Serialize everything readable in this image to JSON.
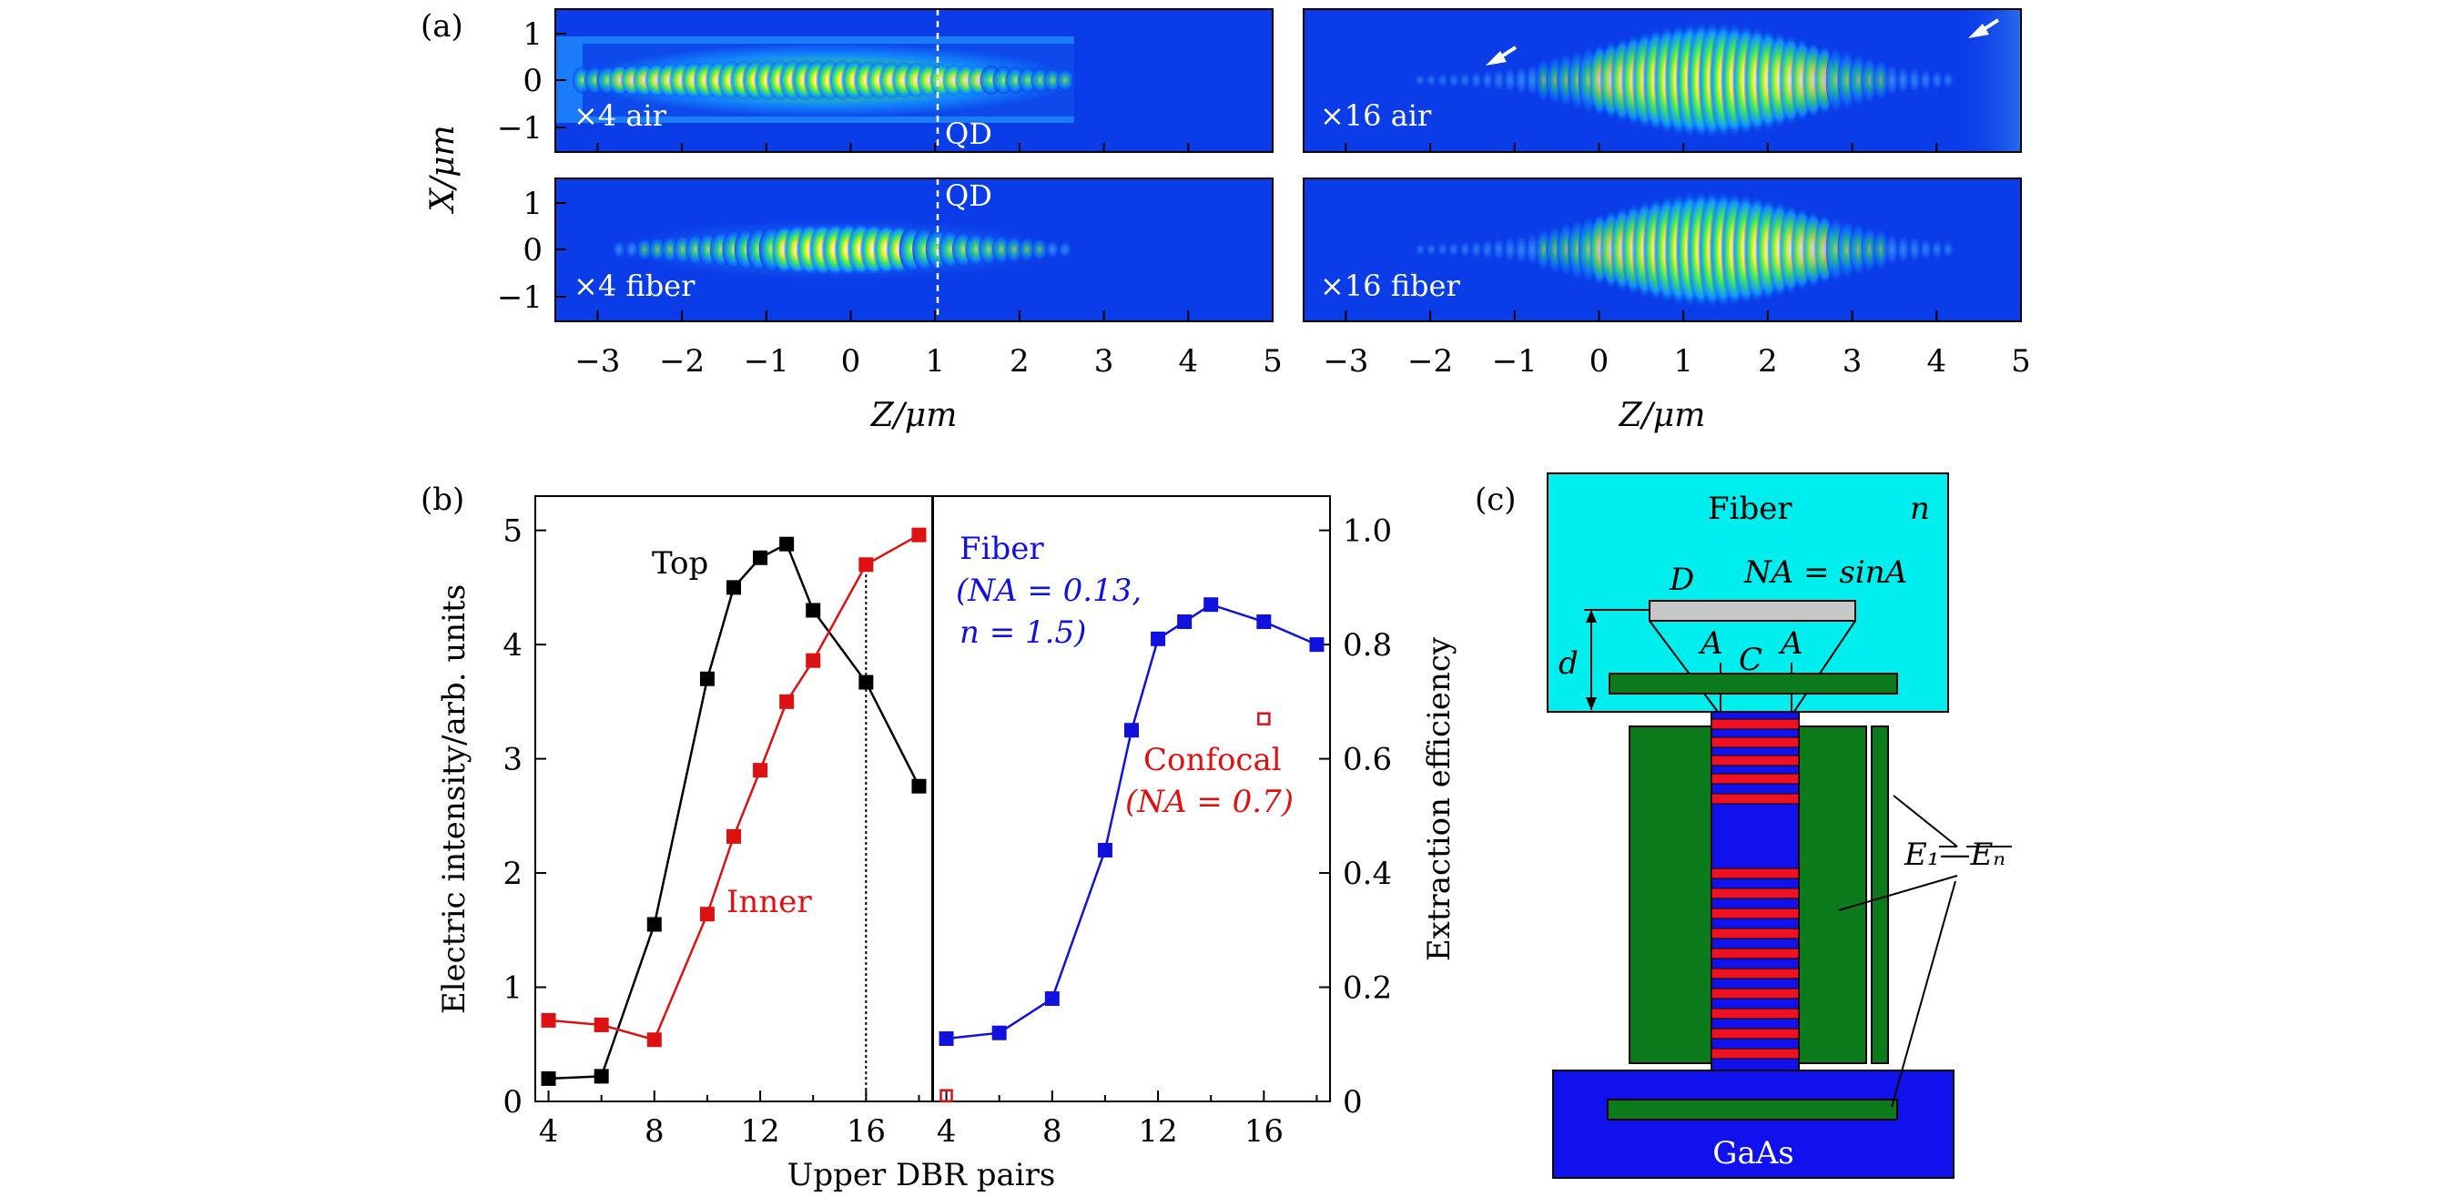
{
  "panel_a": {
    "label": "(a)",
    "ylabel": "X/μm",
    "xlabel": "Z/μm",
    "x_ticks": [
      "−3",
      "−2",
      "−1",
      "0",
      "1",
      "2",
      "3",
      "4",
      "5"
    ],
    "y_ticks": [
      "1",
      "0",
      "−1"
    ],
    "maps": [
      {
        "label": "×4 air"
      },
      {
        "label": "×16 air"
      },
      {
        "label": "×4 fiber"
      },
      {
        "label": "×16 fiber"
      }
    ],
    "qd_label": "QD"
  },
  "panel_b": {
    "label": "(b)",
    "left": {
      "ylabel": "Electric intensity/arb. units",
      "y_ticks": [
        "0",
        "1",
        "2",
        "3",
        "4",
        "5"
      ]
    },
    "right": {
      "ylabel": "Extraction efficiency",
      "y_ticks": [
        "0",
        "0.2",
        "0.4",
        "0.6",
        "0.8",
        "1.0"
      ]
    },
    "xlabel": "Upper DBR pairs",
    "x_ticks": [
      "4",
      "8",
      "12",
      "16"
    ],
    "annotations": {
      "top": "Top",
      "inner": "Inner",
      "fiber_1": "Fiber",
      "fiber_2": "(NA = 0.13,",
      "fiber_3": "n = 1.5)",
      "confocal_1": "Confocal",
      "confocal_2": "(NA = 0.7)"
    }
  },
  "panel_c": {
    "label": "(c)",
    "fiber": "Fiber",
    "n": "n",
    "D": "D",
    "na": "NA = sinA",
    "d": "d",
    "A1": "A",
    "C": "C",
    "A2": "A",
    "E": "E₁—Eₙ",
    "gaas": "GaAs"
  },
  "chart_data": [
    {
      "type": "line",
      "ylabel": "Electric intensity/arb. units",
      "xlabel": "Upper DBR pairs",
      "xlim": [
        3.5,
        18.5
      ],
      "ylim": [
        0,
        5.3
      ],
      "series": [
        {
          "name": "Top",
          "color": "#000000",
          "x": [
            4,
            6,
            8,
            10,
            11,
            12,
            13,
            14,
            16,
            18
          ],
          "y": [
            0.2,
            0.22,
            1.55,
            3.7,
            4.5,
            4.76,
            4.88,
            4.3,
            3.67,
            2.76
          ]
        },
        {
          "name": "Inner",
          "color": "#dd1111",
          "x": [
            4,
            6,
            8,
            10,
            11,
            12,
            13,
            14,
            16,
            18
          ],
          "y": [
            0.71,
            0.67,
            0.54,
            1.64,
            2.32,
            2.9,
            3.5,
            3.86,
            4.7,
            4.96
          ]
        }
      ],
      "vline_x": 16
    },
    {
      "type": "line",
      "ylabel": "Extraction efficiency",
      "xlabel": "Upper DBR pairs",
      "xlim": [
        3.5,
        18.5
      ],
      "ylim": [
        0,
        1.06
      ],
      "series": [
        {
          "name": "Fiber",
          "color": "#1111dd",
          "x": [
            4,
            6,
            8,
            10,
            11,
            12,
            13,
            14,
            16,
            18
          ],
          "y": [
            0.11,
            0.12,
            0.18,
            0.44,
            0.65,
            0.81,
            0.84,
            0.87,
            0.84,
            0.8
          ]
        },
        {
          "name": "Confocal",
          "color": "#dd1111",
          "marker": "open-square",
          "x": [
            4,
            16
          ],
          "y": [
            0.01,
            0.67
          ]
        }
      ]
    }
  ]
}
